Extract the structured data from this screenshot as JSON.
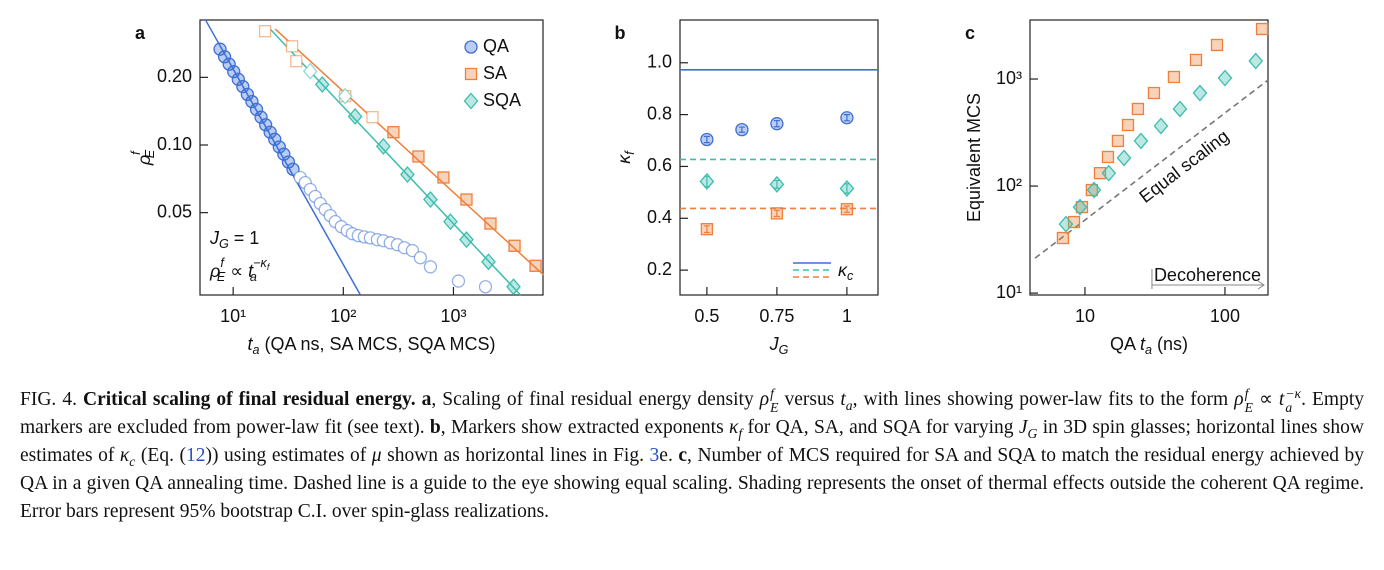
{
  "chart_data": [
    {
      "type": "scatter",
      "panel": "a",
      "log_x": true,
      "log_y": true,
      "xlabel": [
        {
          "t": "t",
          "sub": "a"
        },
        " (QA ns, SA MCS, SQA MCS)"
      ],
      "ylabel": [
        {
          "t": "ρ",
          "sub": "E",
          "sup": "f"
        }
      ],
      "xlim": [
        5,
        6500
      ],
      "ylim": [
        0.0215,
        0.36
      ],
      "xticks": [
        {
          "value": 10,
          "label": "10¹"
        },
        {
          "value": 100,
          "label": "10²"
        },
        {
          "value": 1000,
          "label": "10³"
        }
      ],
      "yticks": [
        0.05,
        {
          "value": 0.1,
          "label": "0.10"
        },
        {
          "value": 0.2,
          "label": "0.20"
        }
      ],
      "legend": "upper right",
      "series": [
        {
          "name": "QA",
          "color": "#3d6fd6",
          "marker": "circle",
          "x": [
            7.6,
            8.36,
            9.2,
            10.12,
            11.13,
            12.24,
            13.46,
            14.81,
            16.29,
            17.92,
            19.71,
            21.68,
            23.85,
            26.24,
            28.86,
            31.75,
            34.92
          ],
          "values": [
            0.267,
            0.247,
            0.229,
            0.212,
            0.196,
            0.182,
            0.168,
            0.156,
            0.144,
            0.133,
            0.123,
            0.114,
            0.106,
            0.098,
            0.091,
            0.084,
            0.078
          ]
        },
        {
          "color": "#3d6fd6",
          "marker": "circle",
          "filled": false,
          "x": [
            40.6,
            45.1,
            50.1,
            55.6,
            61.8,
            68.6,
            76.2,
            84.6,
            95.9,
            108.7,
            120.7,
            136.8,
            155.2,
            175.9,
            203.6,
            231,
            267,
            310,
            359,
            424,
            501,
            618,
            1110,
            1954
          ],
          "values": [
            0.0717,
            0.068,
            0.0634,
            0.059,
            0.0549,
            0.0516,
            0.0485,
            0.0456,
            0.0433,
            0.0416,
            0.0403,
            0.0395,
            0.039,
            0.0386,
            0.0379,
            0.0375,
            0.0367,
            0.036,
            0.0349,
            0.0339,
            0.0315,
            0.0287,
            0.0248,
            0.0234
          ]
        },
        {
          "color": "#ef7f3a",
          "marker": "square",
          "filled": false,
          "x": [
            19.5,
            34.3,
            37.4,
            104,
            184
          ],
          "values": [
            0.321,
            0.275,
            0.236,
            0.165,
            0.133
          ]
        },
        {
          "name": "SA",
          "color": "#ef7f3a",
          "marker": "square",
          "x": [
            285,
            481,
            811,
            1313,
            2168,
            3587,
            5560
          ],
          "values": [
            0.114,
            0.0889,
            0.0717,
            0.0572,
            0.0447,
            0.0356,
            0.029
          ]
        },
        {
          "color": "#3dbdae",
          "marker": "diamond",
          "filled": false,
          "x": [
            50.1,
            104
          ],
          "values": [
            0.213,
            0.165
          ]
        },
        {
          "name": "SQA",
          "color": "#3dbdae",
          "marker": "diamond",
          "x": [
            64.4,
            128,
            231,
            382,
            618,
            939,
            1313,
            2080,
            3510
          ],
          "values": [
            0.186,
            0.134,
            0.0986,
            0.0739,
            0.0572,
            0.0456,
            0.0379,
            0.0302,
            0.0234
          ]
        }
      ],
      "fits": [
        {
          "color": "#3d6fd6",
          "x": [
            5.56,
            143
          ],
          "values": [
            0.363,
            0.0215
          ]
        },
        {
          "color": "#ef7f3a",
          "x": [
            24.1,
            6577
          ],
          "values": [
            0.328,
            0.0264
          ]
        },
        {
          "color": "#3dbdae",
          "x": [
            21.7,
            4064
          ],
          "values": [
            0.328,
            0.0215
          ]
        }
      ],
      "annotations": [
        [
          {
            "t": "J",
            "sub": "G"
          },
          " = 1"
        ],
        [
          {
            "t": "ρ",
            "sub": "E",
            "sup": "f"
          },
          " ∝ ",
          {
            "t": "t",
            "sub": "a",
            "sup": "−κ",
            "supsub": "f"
          }
        ]
      ]
    },
    {
      "type": "scatter",
      "panel": "b",
      "xlabel": [
        {
          "t": "J",
          "sub": "G"
        }
      ],
      "ylabel": [
        {
          "t": "κ",
          "sub": "f"
        }
      ],
      "xlim": [
        0.404,
        1.111
      ],
      "ylim": [
        0.104,
        1.165
      ],
      "xticks": [
        0.5,
        0.75,
        1
      ],
      "yticks": [
        0.2,
        0.4,
        0.6,
        0.8,
        {
          "value": 1,
          "label": "1.0"
        }
      ],
      "series": [
        {
          "color": "#3d6fd6",
          "marker": "circle",
          "x": [
            0.5,
            0.625,
            0.75,
            1
          ],
          "values": [
            0.704,
            0.742,
            0.765,
            0.788
          ],
          "errors": [
            0.012,
            0.01,
            0.012,
            0.012
          ]
        },
        {
          "color": "#ef7f3a",
          "marker": "square",
          "x": [
            0.5,
            0.75,
            1
          ],
          "values": [
            0.358,
            0.419,
            0.435
          ],
          "errors": [
            0.013,
            0.012,
            0.012
          ]
        },
        {
          "color": "#3dbdae",
          "marker": "diamond",
          "x": [
            0.5,
            0.75,
            1
          ],
          "values": [
            0.542,
            0.531,
            0.515
          ],
          "errors": [
            0.02,
            0.015,
            0.018
          ]
        }
      ],
      "hlines": [
        {
          "value": 0.973,
          "color": "#3d6fd6"
        },
        {
          "value": 0.627,
          "color": "#3dbdae",
          "dashed": true
        },
        {
          "value": 0.438,
          "color": "#ef7f3a",
          "dashed": true
        }
      ],
      "legend": "lower right",
      "legend_label": [
        {
          "t": "κ",
          "sub": "c"
        }
      ]
    },
    {
      "type": "scatter",
      "panel": "c",
      "log_x": true,
      "log_y": true,
      "xlabel": [
        "QA ",
        {
          "t": "t",
          "sub": "a"
        },
        " (ns)"
      ],
      "ylabel": "Equivalent MCS",
      "xlim": [
        4.05,
        203
      ],
      "ylim": [
        9.6,
        3560
      ],
      "xticks": [
        10,
        100
      ],
      "yticks": [
        {
          "value": 10,
          "label": "10¹"
        },
        {
          "value": 100,
          "label": "10²"
        },
        {
          "value": 1000,
          "label": "10³"
        }
      ],
      "series": [
        {
          "color": "#ef7f3a",
          "marker": "square",
          "x": [
            6.96,
            8.35,
            9.52,
            11.2,
            12.8,
            14.6,
            17.2,
            20.3,
            23.9,
            31.1,
            43.2,
            62.1,
            87.7,
            184
          ],
          "values": [
            32.7,
            46.1,
            63.6,
            91.8,
            132,
            187,
            264,
            372,
            525,
            740,
            1045,
            1507,
            2080,
            2931
          ]
        },
        {
          "color": "#3dbdae",
          "marker": "diamond",
          "x": [
            7.32,
            9.21,
            11.6,
            14.8,
            19.0,
            25.1,
            34.9,
            47.7,
            66.3,
            100,
            166
          ],
          "values": [
            44.1,
            63.6,
            91.8,
            132,
            183,
            264,
            364,
            525,
            740,
            1021,
            1472
          ]
        }
      ],
      "guide": {
        "label": "Equal scaling",
        "color": "#777777",
        "x": [
          4.4,
          203
        ],
        "values": [
          21.2,
          977
        ]
      },
      "decoherence": {
        "label": "Decoherence",
        "x": 30.1
      }
    }
  ],
  "caption": [
    "FIG. 4. ",
    {
      "b": "Critical scaling of final residual energy."
    },
    " ",
    {
      "b": "a"
    },
    ", Scaling of final residual energy density ",
    {
      "t": "ρ",
      "sub": "E",
      "sup": "f"
    },
    " versus ",
    {
      "t": "t",
      "sub": "a"
    },
    ", with lines showing power-law fits to the form ",
    {
      "t": "ρ",
      "sub": "E",
      "sup": "f"
    },
    " ∝ ",
    {
      "t": "t",
      "sub": "a",
      "sup": "−κ",
      "supsub": "f"
    },
    ". Empty markers are excluded from power-law fit (see text). ",
    {
      "b": "b"
    },
    ", Markers show extracted exponents ",
    {
      "t": "κ",
      "sub": "f"
    },
    " for QA, SA, and SQA for varying ",
    {
      "t": "J",
      "sub": "G"
    },
    " in 3D spin glasses; horizontal lines show estimates of ",
    {
      "t": "κ",
      "sub": "c"
    },
    " (Eq. (",
    {
      "link": "12"
    },
    ")) using estimates of ",
    {
      "t": "μ"
    },
    " shown as horizontal lines in Fig. ",
    {
      "link": "3"
    },
    "e. ",
    {
      "b": "c"
    },
    ", Number of MCS required for SA and SQA to match the residual energy achieved by QA in a given QA annealing time. Dashed line is a guide to the eye showing equal scaling. Shading represents the onset of thermal effects outside the coherent QA regime. Error bars represent 95% bootstrap C.I. over spin-glass realizations."
  ]
}
